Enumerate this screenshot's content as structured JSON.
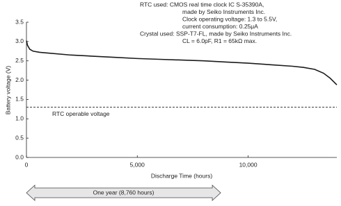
{
  "chart_data": {
    "type": "line",
    "x_label": "Discharge Time (hours)",
    "y_label": "Battery voltage (V)",
    "x": [
      0,
      50,
      150,
      300,
      600,
      1000,
      2000,
      3000,
      4000,
      5000,
      6000,
      7000,
      8000,
      9000,
      10000,
      11000,
      12000,
      12500,
      13000,
      13400,
      13700,
      14000
    ],
    "series": [
      {
        "color": "#1a1a1a",
        "values": [
          3.02,
          2.9,
          2.8,
          2.75,
          2.72,
          2.7,
          2.65,
          2.62,
          2.59,
          2.56,
          2.54,
          2.52,
          2.5,
          2.47,
          2.44,
          2.4,
          2.36,
          2.33,
          2.28,
          2.18,
          2.05,
          1.88
        ]
      }
    ],
    "xlim": [
      0,
      14000
    ],
    "ylim": [
      0,
      3.5
    ],
    "xticks": [
      0,
      {
        "value": 5000,
        "label": "5,000"
      },
      {
        "value": 10000,
        "label": "10,000"
      }
    ],
    "yticks": [
      {
        "value": 0,
        "label": "0.0"
      },
      0.5,
      {
        "value": 1,
        "label": "1.0"
      },
      1.5,
      {
        "value": 2,
        "label": "2.0"
      },
      2.5,
      {
        "value": 3,
        "label": "3.0"
      },
      3.5
    ],
    "reference_line": {
      "value": 1.3,
      "label": "RTC operable voltage"
    },
    "notes": [
      "RTC used: CMOS real time clock IC S-35390A,",
      "made by Seiko Instruments Inc.",
      "Clock operating voltage: 1.3 to 5.5V,",
      "current consumption: 0.25μA",
      "Crystal used: SSP-T7-FL, made by Seiko Instruments Inc.",
      "CL = 6.0pF, R1 = 65kΩ max."
    ],
    "span_annotation": {
      "label": "One year (8,760 hours)",
      "x_range": [
        0,
        8760
      ]
    }
  }
}
